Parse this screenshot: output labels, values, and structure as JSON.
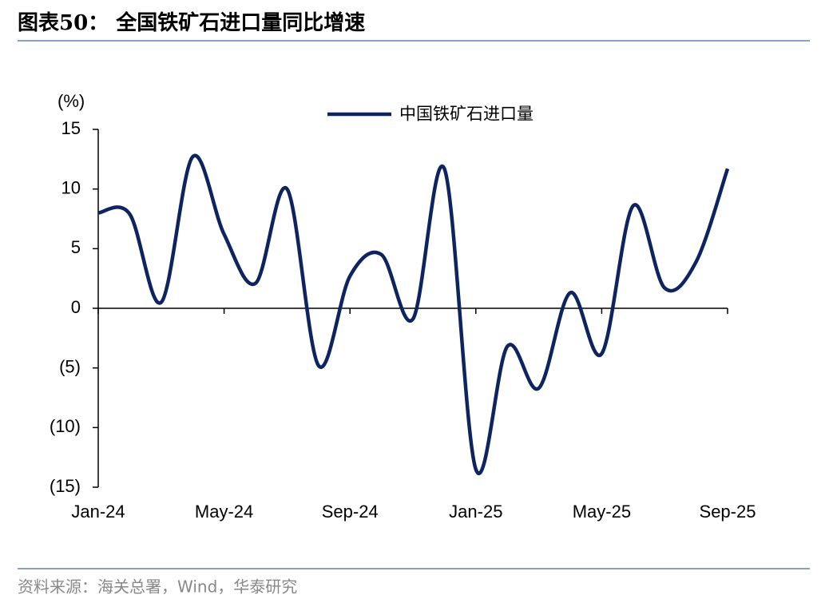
{
  "chart_data": {
    "type": "line",
    "title": "图表50： 全国铁矿石进口量同比增速",
    "source": "资料来源：海关总署，Wind，华泰研究",
    "y_axis_label": "(%)",
    "categories": [
      "Jan-24",
      null,
      null,
      null,
      "May-24",
      null,
      null,
      null,
      "Sep-24",
      null,
      null,
      null,
      "Jan-25",
      null,
      null,
      null,
      "May-25",
      null,
      null,
      null,
      "Sep-25"
    ],
    "series": [
      {
        "name": "中国铁矿石进口量",
        "color": "#0d2461",
        "values": [
          8.0,
          7.9,
          0.5,
          12.7,
          6.2,
          2.1,
          10.0,
          -4.8,
          2.7,
          4.5,
          -0.9,
          11.7,
          -13.5,
          -3.2,
          -6.7,
          1.3,
          -3.8,
          8.6,
          1.7,
          3.9,
          11.7
        ]
      }
    ],
    "ylim": [
      -15,
      15
    ],
    "yticks": [
      {
        "value": -15,
        "label": "(15)"
      },
      {
        "value": -10,
        "label": "(10)"
      },
      {
        "value": -5,
        "label": "(5)"
      },
      0,
      5,
      10,
      15
    ],
    "legend": "top"
  }
}
